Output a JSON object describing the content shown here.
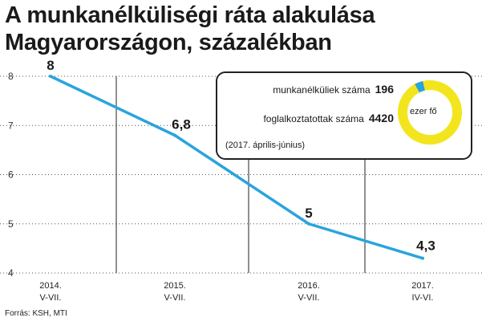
{
  "title": "A munkanélküliségi ráta alakulása Magyarországon, százalékban",
  "source": "Forrás: KSH, MTI",
  "colors": {
    "line": "#2aa4dd",
    "donut_main": "#f2e51d",
    "donut_accent": "#2aa4dd"
  },
  "chart_data": {
    "type": "line",
    "title": "A munkanélküliségi ráta alakulása Magyarországon, százalékban",
    "categories": [
      "2014. V-VII.",
      "2015. V-VII.",
      "2016. V-VII.",
      "2017. IV-VI."
    ],
    "category_lines": [
      [
        "2014.",
        "V-VII."
      ],
      [
        "2015.",
        "V-VII."
      ],
      [
        "2016.",
        "V-VII."
      ],
      [
        "2017.",
        "IV-VI."
      ]
    ],
    "values": [
      8,
      6.8,
      5,
      4.3
    ],
    "value_labels": [
      "8",
      "6,8",
      "5",
      "4,3"
    ],
    "yticks": [
      "8",
      "7",
      "6",
      "5",
      "4"
    ],
    "ylim": [
      4,
      8
    ],
    "xlabel": "",
    "ylabel": "",
    "grid": "horizontal dotted",
    "inset": {
      "type": "pie",
      "labels": [
        "munkanélküliek száma",
        "foglalkoztatottak száma"
      ],
      "values": [
        196,
        4420
      ],
      "value_labels": [
        "196",
        "4420"
      ],
      "center_label": "ezer fő",
      "note": "(2017. április-június)"
    }
  }
}
